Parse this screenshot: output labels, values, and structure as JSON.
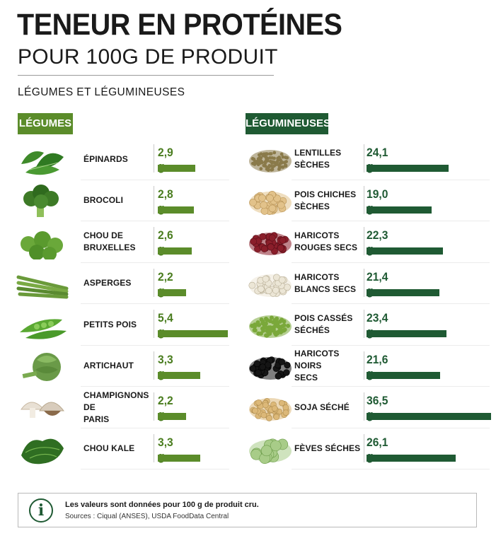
{
  "header": {
    "title": "TENEUR EN PROTÉINES",
    "subtitle": "POUR 100G DE PRODUIT",
    "section": "LÉGUMES ET LÉGUMINEUSES"
  },
  "colors": {
    "legumes": "#5b8c2a",
    "legumineuses": "#1f5a33"
  },
  "chart_data": [
    {
      "type": "bar",
      "title": "LÉGUMES",
      "categories": [
        "ÉPINARDS",
        "BROCOLI",
        "CHOU DE BRUXELLES",
        "ASPERGES",
        "PETITS POIS",
        "ARTICHAUT",
        "CHAMPIGNONS DE PARIS",
        "CHOU KALE"
      ],
      "values": [
        2.9,
        2.8,
        2.6,
        2.2,
        5.4,
        3.3,
        2.2,
        3.3
      ],
      "value_labels": [
        "2,9 g",
        "2,8 g",
        "2,6 g",
        "2,2 g",
        "5,4 g",
        "3,3 g",
        "2,2 g",
        "3,3 g"
      ],
      "icons": [
        "spinach-icon",
        "broccoli-icon",
        "brussels-sprouts-icon",
        "asparagus-icon",
        "peas-icon",
        "artichoke-icon",
        "mushroom-icon",
        "kale-icon"
      ],
      "unit": "g",
      "orientation": "horizontal",
      "xlim": [
        0,
        5.4
      ]
    },
    {
      "type": "bar",
      "title": "LÉGUMINEUSES",
      "categories": [
        "LENTILLES SÈCHES",
        "POIS CHICHES SÈCHES",
        "HARICOTS ROUGES SECS",
        "HARICOTS BLANCS SECS",
        "POIS CASSÉS SÉCHÉS",
        "HARICOTS NOIRS SECS",
        "SOJA SÉCHÉ",
        "FÈVES SÉCHES"
      ],
      "values": [
        24.1,
        19.0,
        22.3,
        21.4,
        23.4,
        21.6,
        36.5,
        26.1
      ],
      "value_labels": [
        "24,1 g",
        "19,0 g",
        "22,3 g",
        "21,4 g",
        "23,4 g",
        "21,6 g",
        "36,5 g",
        "26,1 g"
      ],
      "icons": [
        "lentils-icon",
        "chickpeas-icon",
        "red-beans-icon",
        "white-beans-icon",
        "split-peas-icon",
        "black-beans-icon",
        "soybeans-icon",
        "fava-beans-icon"
      ],
      "unit": "g",
      "orientation": "horizontal",
      "xlim": [
        0,
        36.5
      ]
    }
  ],
  "info": {
    "icon": "info-icon",
    "line1": "Les valeurs sont données pour 100 g de produit cru.",
    "line2": "Sources : Ciqual (ANSES), USDA FoodData Central"
  }
}
